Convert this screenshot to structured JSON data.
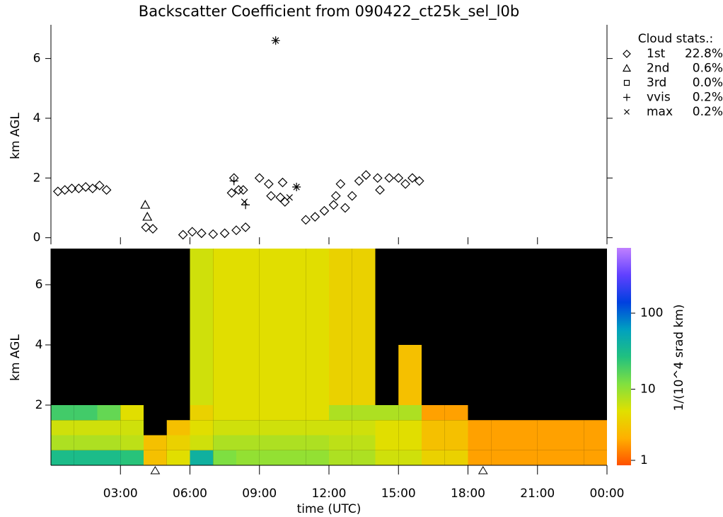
{
  "chart_data": [
    {
      "type": "scatter",
      "title": "Backscatter Coefficient from 090422_ct25k_sel_l0b",
      "ylabel": "km AGL",
      "legend_title": "Cloud stats.:",
      "legend": "upper right",
      "xlim": [
        0,
        24
      ],
      "ylim": [
        -0.15,
        7.2
      ],
      "yticks": [
        0,
        2,
        4,
        6
      ],
      "series": [
        {
          "name": "1st",
          "stat": "22.8%",
          "marker": "diamond",
          "color": "#000000",
          "x": [
            0.3,
            0.6,
            0.9,
            1.2,
            1.5,
            1.8,
            2.1,
            2.4,
            4.1,
            4.4,
            5.7,
            6.1,
            6.5,
            7.0,
            7.5,
            8.0,
            8.4,
            7.8,
            7.9,
            8.1,
            8.3,
            9.0,
            9.4,
            9.5,
            9.9,
            10.1,
            10.0,
            11.0,
            11.4,
            11.8,
            12.2,
            12.3,
            12.5,
            12.7,
            13.0,
            13.3,
            13.6,
            14.1,
            14.2,
            14.6,
            15.0,
            15.3,
            15.6,
            15.9
          ],
          "y": [
            1.55,
            1.6,
            1.65,
            1.65,
            1.7,
            1.65,
            1.75,
            1.6,
            0.35,
            0.3,
            0.1,
            0.2,
            0.15,
            0.12,
            0.15,
            0.25,
            0.35,
            1.5,
            2.0,
            1.6,
            1.6,
            2.0,
            1.8,
            1.4,
            1.35,
            1.2,
            1.85,
            0.6,
            0.7,
            0.9,
            1.1,
            1.4,
            1.8,
            1.0,
            1.4,
            1.9,
            2.1,
            2.0,
            1.6,
            2.0,
            2.0,
            1.8,
            2.0,
            1.9
          ]
        },
        {
          "name": "2nd",
          "stat": "0.6%",
          "marker": "triangle",
          "color": "#000000",
          "x": [
            4.07,
            4.16
          ],
          "y": [
            1.1,
            0.7
          ]
        },
        {
          "name": "3rd",
          "stat": "0.0%",
          "marker": "square",
          "color": "#000000",
          "x": [],
          "y": []
        },
        {
          "name": "vvis",
          "stat": "0.2%",
          "marker": "plus",
          "color": "#000000",
          "x": [
            7.9,
            8.4,
            9.7,
            10.6
          ],
          "y": [
            1.9,
            1.1,
            6.6,
            1.7
          ]
        },
        {
          "name": "max",
          "stat": "0.2%",
          "marker": "x",
          "color": "#000000",
          "x": [
            8.35,
            9.7,
            10.6,
            10.3
          ],
          "y": [
            1.2,
            6.6,
            1.7,
            1.35
          ]
        }
      ]
    },
    {
      "type": "heatmap",
      "xlabel": "time (UTC)",
      "ylabel": "km AGL",
      "colorbar_label": "1/(10^4 srad km)",
      "xlim": [
        0,
        24
      ],
      "ylim": [
        0,
        7.2
      ],
      "yticks": [
        2,
        4,
        6
      ],
      "xticks": [
        {
          "value": 3,
          "label": "03:00"
        },
        {
          "value": 6,
          "label": "06:00"
        },
        {
          "value": 9,
          "label": "09:00"
        },
        {
          "value": 12,
          "label": "12:00"
        },
        {
          "value": 15,
          "label": "15:00"
        },
        {
          "value": 18,
          "label": "18:00"
        },
        {
          "value": 21,
          "label": "21:00"
        },
        {
          "value": 24,
          "label": "00:00"
        }
      ],
      "x_markers": [
        4.5,
        18.65
      ],
      "x_bins": [
        0,
        1,
        2,
        3,
        4,
        5,
        6,
        7,
        8,
        9,
        10,
        11,
        12,
        13,
        14,
        15,
        16,
        17,
        18,
        19,
        20,
        21,
        22,
        23,
        24
      ],
      "y_bins": [
        0,
        0.5,
        1,
        1.5,
        2,
        4,
        7.2
      ],
      "z": [
        [
          30,
          8,
          6,
          20,
          null,
          null
        ],
        [
          30,
          8,
          6,
          20,
          null,
          null
        ],
        [
          30,
          8,
          6,
          15,
          null,
          null
        ],
        [
          25,
          7,
          6,
          5,
          null,
          null
        ],
        [
          3,
          3,
          null,
          null,
          null,
          null
        ],
        [
          5,
          4,
          3,
          null,
          null,
          null
        ],
        [
          40,
          6,
          5,
          4,
          6,
          6
        ],
        [
          12,
          8,
          6,
          5,
          5,
          5
        ],
        [
          10,
          8,
          6,
          5,
          5,
          5
        ],
        [
          10,
          8,
          6,
          5,
          5,
          5
        ],
        [
          10,
          8,
          6,
          5,
          5,
          5
        ],
        [
          10,
          8,
          6,
          5,
          5,
          5
        ],
        [
          8,
          7,
          6,
          8,
          4,
          4
        ],
        [
          8,
          7,
          6,
          8,
          4,
          4
        ],
        [
          6,
          5,
          5,
          8,
          null,
          null
        ],
        [
          6,
          5,
          5,
          8,
          3,
          null
        ],
        [
          4,
          3,
          3,
          2,
          null,
          null
        ],
        [
          4,
          3,
          3,
          2,
          null,
          null
        ],
        [
          2,
          2,
          2,
          null,
          null,
          null
        ],
        [
          2,
          2,
          2,
          null,
          null,
          null
        ],
        [
          2,
          2,
          2,
          null,
          null,
          null
        ],
        [
          2,
          2,
          2,
          null,
          null,
          null
        ],
        [
          2,
          2,
          2,
          null,
          null,
          null
        ],
        [
          2,
          2,
          2,
          null,
          null,
          null
        ]
      ],
      "clim": [
        1,
        720
      ],
      "cticks": [
        1,
        10,
        100
      ],
      "log_color": true,
      "missing_color": "#000000",
      "colormap": [
        "#ff5000",
        "#ffb000",
        "#e0e000",
        "#80e040",
        "#20c080",
        "#00a0c0",
        "#0040e0",
        "#6040ff",
        "#c080ff"
      ]
    }
  ]
}
